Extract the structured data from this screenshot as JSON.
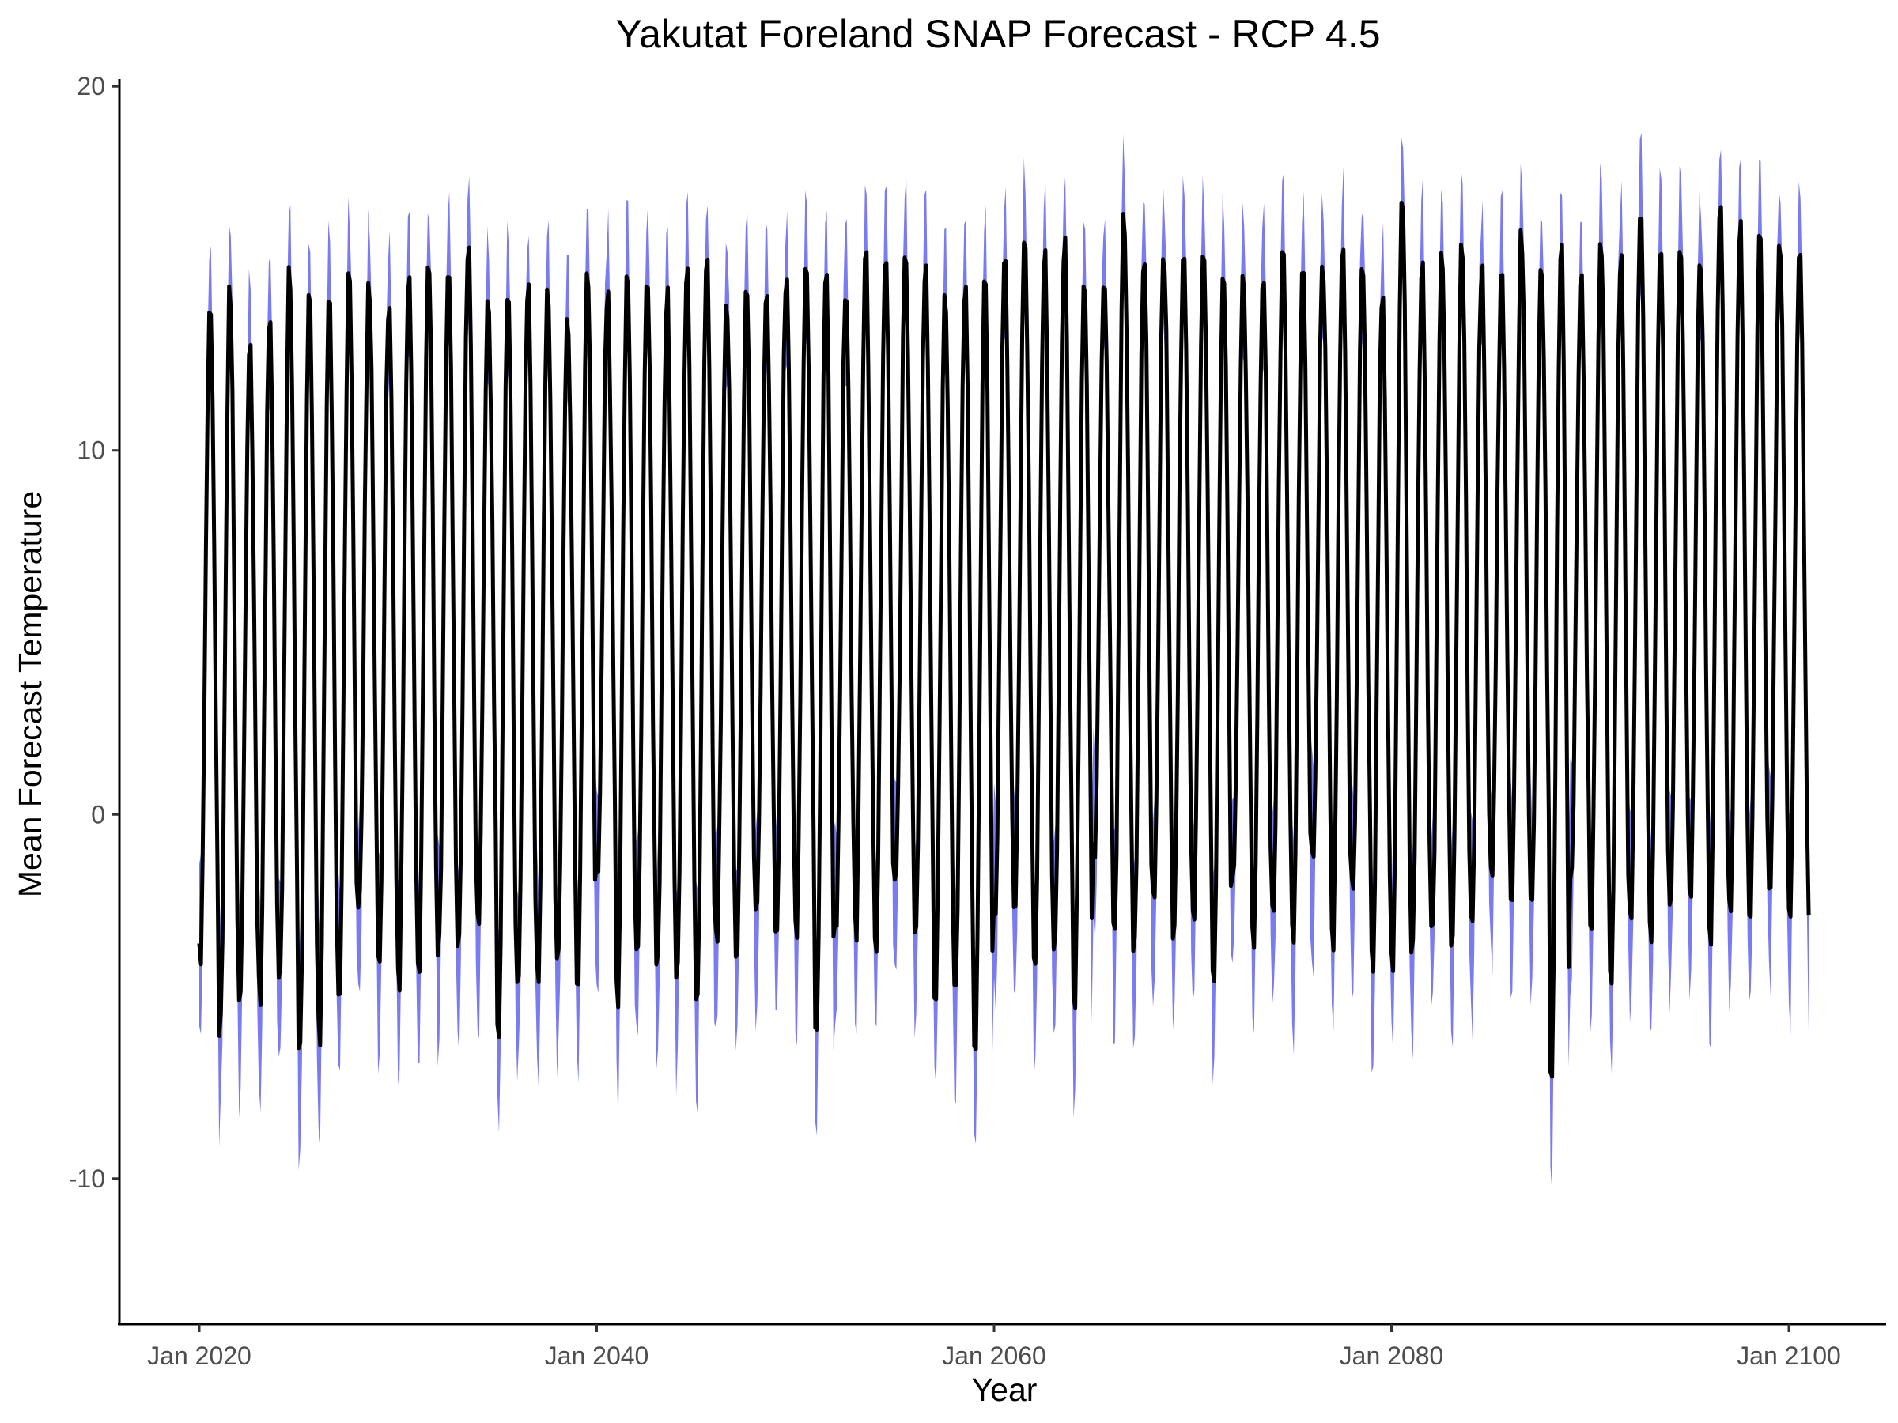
{
  "chart_data": {
    "type": "line",
    "title": "Yakutat Foreland SNAP Forecast - RCP 4.5",
    "xlabel": "Year",
    "ylabel": "Mean Forecast Temperature",
    "x_ticks": [
      "Jan 2020",
      "Jan 2040",
      "Jan 2060",
      "Jan 2080",
      "Jan 2100"
    ],
    "y_ticks": [
      "-10",
      "0",
      "10",
      "20"
    ],
    "xlim": [
      "2019-12",
      "2101-01"
    ],
    "ylim": [
      -14,
      20.2
    ],
    "grid": false,
    "legend": "none",
    "x_start": "2020-01",
    "x_end": "2101-01",
    "sampling": "monthly",
    "series": [
      {
        "role": "mean",
        "color": "#000000",
        "annual_extremes": {
          "years": [
            2020,
            2021,
            2022,
            2023,
            2024,
            2025,
            2026,
            2027,
            2028,
            2029,
            2030,
            2031,
            2032,
            2033,
            2034,
            2035,
            2036,
            2037,
            2038,
            2039,
            2040,
            2041,
            2042,
            2043,
            2044,
            2045,
            2046,
            2047,
            2048,
            2049,
            2050,
            2051,
            2052,
            2053,
            2054,
            2055,
            2056,
            2057,
            2058,
            2059,
            2060,
            2061,
            2062,
            2063,
            2064,
            2065,
            2066,
            2067,
            2068,
            2069,
            2070,
            2071,
            2072,
            2073,
            2074,
            2075,
            2076,
            2077,
            2078,
            2079,
            2080,
            2081,
            2082,
            2083,
            2084,
            2085,
            2086,
            2087,
            2088,
            2089,
            2090,
            2091,
            2092,
            2093,
            2094,
            2095,
            2096,
            2097,
            2098,
            2099,
            2100
          ],
          "winter_min": [
            -4.1,
            -6.2,
            -5.2,
            -5.2,
            -4.6,
            -6.8,
            -6.3,
            -4.9,
            -2.6,
            -4.4,
            -4.8,
            -4.4,
            -3.9,
            -3.8,
            -3.2,
            -6.1,
            -5.0,
            -4.8,
            -4.0,
            -4.7,
            -1.9,
            -5.3,
            -4.1,
            -4.5,
            -4.6,
            -5.6,
            -3.6,
            -4.1,
            -3.0,
            -3.4,
            -3.5,
            -6.6,
            -3.0,
            -3.4,
            -4.0,
            -2.1,
            -3.6,
            -5.4,
            -5.3,
            -6.5,
            -2.9,
            -2.8,
            -4.4,
            -3.7,
            -5.5,
            -1.4,
            -3.7,
            -3.8,
            -2.6,
            -3.4,
            -2.8,
            -4.7,
            -1.6,
            -3.8,
            -2.9,
            -3.7,
            -1.6,
            -3.7,
            -2.4,
            -4.4,
            -4.4,
            -3.9,
            -3.5,
            -3.6,
            -3.0,
            -2.0,
            -2.5,
            -2.5,
            -7.2,
            -2.1,
            -3.1,
            -4.6,
            -3.0,
            -3.5,
            -2.6,
            -2.2,
            -3.7,
            -3.0,
            -3.3,
            -2.1,
            -3.3
          ],
          "summer_max": [
            13.7,
            14.5,
            13.1,
            13.8,
            15.0,
            14.3,
            14.1,
            15.0,
            14.7,
            14.2,
            14.8,
            15.6,
            15.2,
            15.8,
            14.2,
            14.5,
            14.7,
            14.5,
            13.8,
            15.2,
            14.4,
            15.2,
            14.7,
            14.4,
            15.2,
            15.6,
            13.9,
            14.4,
            14.7,
            14.9,
            14.9,
            15.1,
            14.6,
            15.4,
            15.7,
            15.3,
            15.1,
            14.5,
            14.6,
            14.7,
            15.2,
            15.7,
            15.6,
            15.8,
            14.7,
            14.7,
            16.5,
            15.4,
            15.6,
            15.9,
            15.4,
            15.3,
            14.9,
            14.7,
            15.8,
            15.4,
            15.3,
            15.6,
            14.9,
            14.6,
            16.8,
            15.2,
            15.4,
            15.6,
            15.1,
            14.9,
            16.0,
            15.2,
            15.9,
            14.8,
            16.0,
            15.5,
            16.5,
            15.5,
            15.9,
            15.6,
            16.9,
            16.3,
            15.9,
            15.8,
            15.9
          ]
        }
      },
      {
        "role": "range",
        "color": "#7b7bf0",
        "spread_summer": 2.4,
        "spread_winter": 3.4
      }
    ]
  }
}
